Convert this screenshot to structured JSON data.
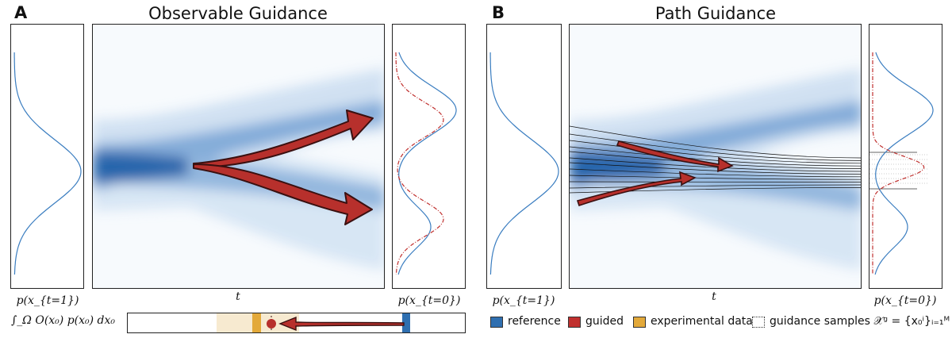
{
  "panel_a": {
    "letter": "A",
    "title": "Observable Guidance",
    "left_label": "p(x_{t=1})",
    "center_label": "t",
    "right_label": "p(x_{t=0})",
    "integral_label": "∫_Ω O(x₀) p(x₀) dx₀"
  },
  "panel_b": {
    "letter": "B",
    "title": "Path Guidance",
    "left_label": "p(x_{t=1})",
    "center_label": "t",
    "right_label": "p(x_{t=0})"
  },
  "legend": {
    "items": [
      {
        "key": "reference",
        "label": "reference",
        "color": "#2f6fb0"
      },
      {
        "key": "guided",
        "label": "guided",
        "color": "#c0302e"
      },
      {
        "key": "experimental",
        "label": "experimental data",
        "color": "#e3a93a"
      },
      {
        "key": "samples",
        "label": "guidance samples 𝒳ᵍ = {x₀ⁱ}ᵢ₌₁ᴹ",
        "color": "#ffffff"
      }
    ]
  },
  "colors": {
    "reference_line": "#3a7dc0",
    "guided_line": "#c0302e",
    "arrow_fill": "#b7302c",
    "arrow_stroke": "#3a1010",
    "heatmap": "#1f5fa8",
    "experimental_band": "#f7ead0"
  }
}
